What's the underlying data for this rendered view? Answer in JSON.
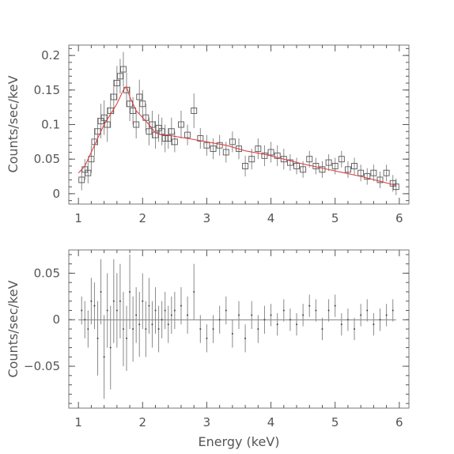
{
  "chart_data": [
    {
      "type": "scatter",
      "panel": "spectrum",
      "xlabel": "",
      "ylabel": "Counts/sec/keV",
      "xlim": [
        0.85,
        6.15
      ],
      "ylim": [
        -0.015,
        0.215
      ],
      "xticks": [
        1,
        2,
        3,
        4,
        5,
        6
      ],
      "xtick_labels": [
        "1",
        "2",
        "3",
        "4",
        "5",
        "6"
      ],
      "yticks": [
        0,
        0.05,
        0.1,
        0.15,
        0.2
      ],
      "ytick_labels": [
        "0",
        "0.05",
        "0.1",
        "0.15",
        "0.2"
      ],
      "marker": "open-square",
      "model_color": "#d44444",
      "series": [
        {
          "x": [
            1.05,
            1.1,
            1.15,
            1.2,
            1.25,
            1.3,
            1.35,
            1.4,
            1.45,
            1.5,
            1.55,
            1.6,
            1.65,
            1.7,
            1.75,
            1.8,
            1.85,
            1.9,
            1.95,
            2.0,
            2.05,
            2.1,
            2.15,
            2.2,
            2.25,
            2.3,
            2.35,
            2.4,
            2.45,
            2.5,
            2.6,
            2.7,
            2.8,
            2.9,
            3.0,
            3.1,
            3.2,
            3.3,
            3.4,
            3.5,
            3.6,
            3.7,
            3.8,
            3.9,
            4.0,
            4.1,
            4.2,
            4.3,
            4.4,
            4.5,
            4.6,
            4.7,
            4.8,
            4.9,
            5.0,
            5.1,
            5.2,
            5.3,
            5.4,
            5.5,
            5.6,
            5.7,
            5.8,
            5.9,
            5.95
          ],
          "y": [
            0.02,
            0.035,
            0.03,
            0.05,
            0.075,
            0.09,
            0.105,
            0.11,
            0.1,
            0.12,
            0.14,
            0.16,
            0.17,
            0.18,
            0.15,
            0.13,
            0.12,
            0.1,
            0.14,
            0.13,
            0.11,
            0.09,
            0.1,
            0.085,
            0.095,
            0.09,
            0.08,
            0.08,
            0.09,
            0.075,
            0.1,
            0.085,
            0.12,
            0.08,
            0.07,
            0.065,
            0.07,
            0.06,
            0.075,
            0.065,
            0.04,
            0.05,
            0.065,
            0.055,
            0.06,
            0.055,
            0.05,
            0.045,
            0.04,
            0.035,
            0.05,
            0.04,
            0.035,
            0.045,
            0.04,
            0.05,
            0.035,
            0.04,
            0.03,
            0.025,
            0.03,
            0.02,
            0.03,
            0.015,
            0.01
          ],
          "yerr": [
            0.015,
            0.015,
            0.015,
            0.02,
            0.02,
            0.02,
            0.025,
            0.025,
            0.025,
            0.025,
            0.025,
            0.025,
            0.025,
            0.025,
            0.025,
            0.025,
            0.02,
            0.02,
            0.025,
            0.02,
            0.02,
            0.02,
            0.02,
            0.02,
            0.02,
            0.02,
            0.02,
            0.015,
            0.02,
            0.015,
            0.02,
            0.015,
            0.025,
            0.015,
            0.015,
            0.015,
            0.015,
            0.015,
            0.015,
            0.015,
            0.015,
            0.015,
            0.015,
            0.015,
            0.015,
            0.015,
            0.015,
            0.012,
            0.012,
            0.012,
            0.012,
            0.012,
            0.012,
            0.012,
            0.012,
            0.012,
            0.012,
            0.012,
            0.012,
            0.012,
            0.012,
            0.012,
            0.012,
            0.012,
            0.012
          ]
        },
        {
          "x": [
            1.0,
            1.1,
            1.2,
            1.3,
            1.4,
            1.5,
            1.6,
            1.7,
            1.75,
            1.8,
            1.9,
            2.0,
            2.1,
            2.2,
            2.3,
            2.4,
            2.5,
            2.7,
            3.0,
            3.3,
            3.6,
            3.9,
            4.2,
            4.5,
            4.8,
            5.1,
            5.4,
            5.7,
            5.95
          ],
          "y": [
            0.03,
            0.04,
            0.06,
            0.08,
            0.1,
            0.115,
            0.13,
            0.15,
            0.155,
            0.14,
            0.12,
            0.11,
            0.1,
            0.088,
            0.085,
            0.085,
            0.083,
            0.08,
            0.075,
            0.07,
            0.062,
            0.057,
            0.05,
            0.043,
            0.037,
            0.031,
            0.025,
            0.018,
            0.012
          ]
        }
      ]
    },
    {
      "type": "scatter",
      "panel": "residuals",
      "xlabel": "Energy (keV)",
      "ylabel": "Counts/sec/keV",
      "xlim": [
        0.85,
        6.15
      ],
      "ylim": [
        -0.095,
        0.075
      ],
      "xticks": [
        1,
        2,
        3,
        4,
        5,
        6
      ],
      "xtick_labels": [
        "1",
        "2",
        "3",
        "4",
        "5",
        "6"
      ],
      "yticks": [
        -0.05,
        0,
        0.05
      ],
      "ytick_labels": [
        "−0.05",
        "0",
        "0.05"
      ],
      "series": [
        {
          "x": [
            1.05,
            1.1,
            1.15,
            1.2,
            1.25,
            1.3,
            1.35,
            1.4,
            1.45,
            1.5,
            1.55,
            1.6,
            1.65,
            1.7,
            1.75,
            1.8,
            1.85,
            1.9,
            1.95,
            2.0,
            2.05,
            2.1,
            2.15,
            2.2,
            2.25,
            2.3,
            2.35,
            2.4,
            2.45,
            2.5,
            2.6,
            2.7,
            2.8,
            2.9,
            3.0,
            3.1,
            3.2,
            3.3,
            3.4,
            3.5,
            3.6,
            3.7,
            3.8,
            3.9,
            4.0,
            4.1,
            4.2,
            4.3,
            4.4,
            4.5,
            4.6,
            4.7,
            4.8,
            4.9,
            5.0,
            5.1,
            5.2,
            5.3,
            5.4,
            5.5,
            5.6,
            5.7,
            5.8,
            5.9
          ],
          "y": [
            0.01,
            0.0,
            -0.01,
            0.02,
            0.015,
            -0.02,
            0.03,
            -0.04,
            0.01,
            -0.03,
            0.02,
            0.01,
            0.02,
            -0.01,
            -0.02,
            0.03,
            -0.01,
            0.005,
            -0.005,
            0.02,
            -0.01,
            0.015,
            -0.005,
            0.01,
            -0.01,
            0.0,
            0.01,
            -0.005,
            0.005,
            0.01,
            0.015,
            0.005,
            0.03,
            -0.01,
            -0.02,
            -0.01,
            0.0,
            0.01,
            -0.015,
            0.005,
            -0.02,
            0.005,
            -0.01,
            0.0,
            0.005,
            -0.005,
            0.01,
            0.0,
            -0.005,
            0.005,
            0.015,
            0.01,
            -0.01,
            0.01,
            0.015,
            -0.005,
            0.0,
            -0.01,
            0.005,
            0.01,
            -0.005,
            0.0,
            0.005,
            0.01
          ],
          "yerr": [
            0.015,
            0.02,
            0.02,
            0.025,
            0.025,
            0.04,
            0.035,
            0.045,
            0.04,
            0.045,
            0.045,
            0.04,
            0.04,
            0.04,
            0.035,
            0.04,
            0.035,
            0.03,
            0.035,
            0.03,
            0.03,
            0.03,
            0.025,
            0.025,
            0.025,
            0.02,
            0.02,
            0.02,
            0.02,
            0.02,
            0.02,
            0.02,
            0.03,
            0.015,
            0.015,
            0.015,
            0.015,
            0.015,
            0.015,
            0.015,
            0.015,
            0.015,
            0.015,
            0.015,
            0.012,
            0.012,
            0.012,
            0.012,
            0.012,
            0.012,
            0.012,
            0.012,
            0.012,
            0.012,
            0.012,
            0.012,
            0.012,
            0.012,
            0.012,
            0.012,
            0.012,
            0.012,
            0.012,
            0.012
          ]
        }
      ]
    }
  ]
}
